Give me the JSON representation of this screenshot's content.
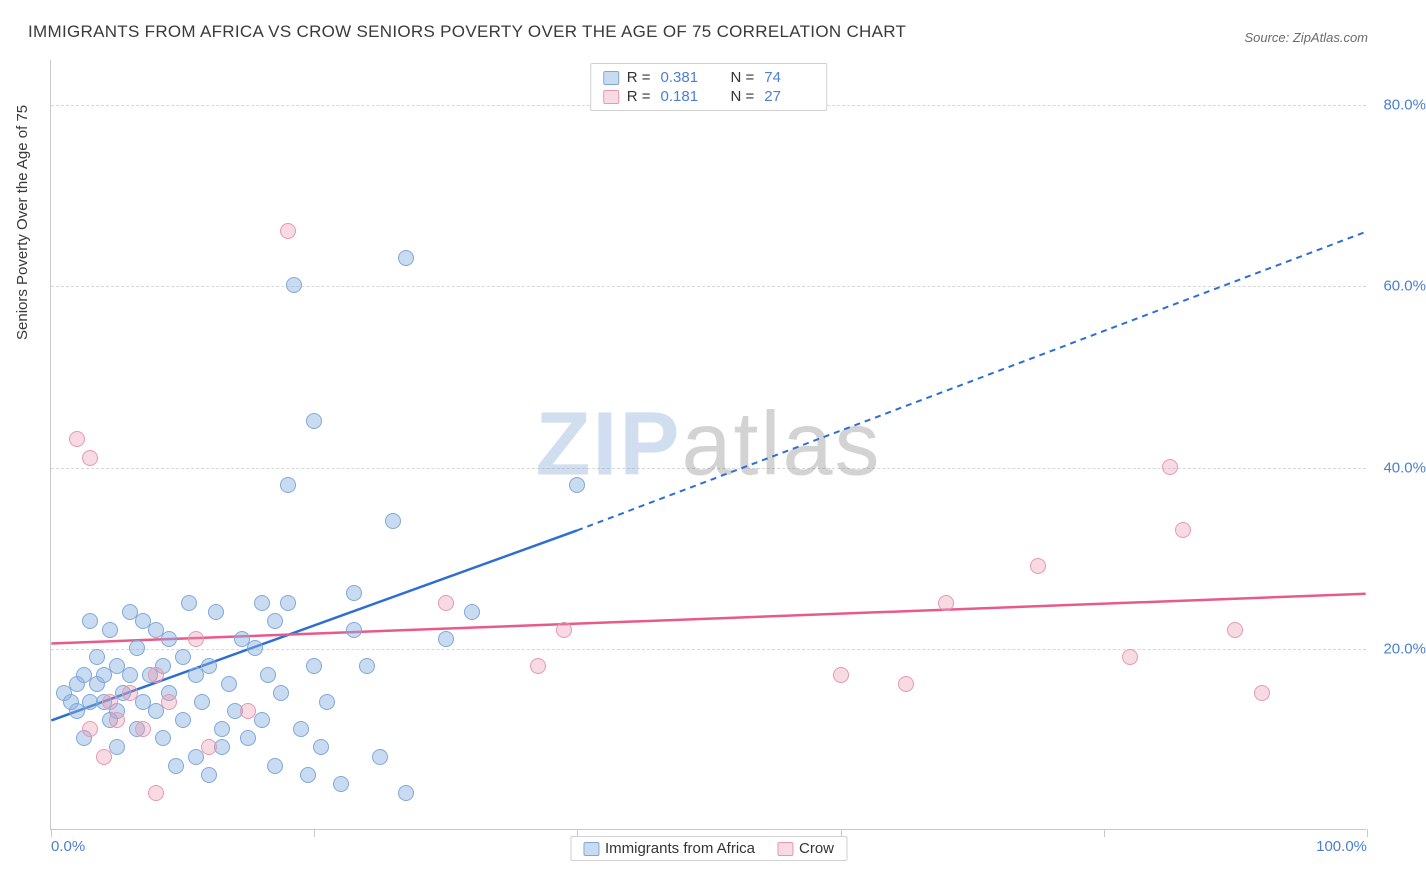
{
  "title": "IMMIGRANTS FROM AFRICA VS CROW SENIORS POVERTY OVER THE AGE OF 75 CORRELATION CHART",
  "source": "Source: ZipAtlas.com",
  "y_axis_label": "Seniors Poverty Over the Age of 75",
  "watermark": {
    "part1": "ZIP",
    "part2": "atlas"
  },
  "chart": {
    "type": "scatter-with-regression",
    "xlim": [
      0,
      100
    ],
    "ylim": [
      0,
      85
    ],
    "x_ticks": [
      0,
      20,
      40,
      60,
      80,
      100
    ],
    "x_tick_labels": {
      "0": "0.0%",
      "100": "100.0%"
    },
    "y_ticks": [
      20,
      40,
      60,
      80
    ],
    "y_tick_labels": {
      "20": "20.0%",
      "40": "40.0%",
      "60": "60.0%",
      "80": "80.0%"
    },
    "background_color": "#ffffff",
    "grid_color": "#d8d8d8",
    "axis_color": "#c9c9c9",
    "tick_label_color": "#4b7fd1",
    "label_color": "#3a3a3a",
    "marker_radius": 8,
    "series": [
      {
        "name": "Immigrants from Africa",
        "fill": "rgba(135,175,225,0.45)",
        "stroke": "#7fa8d9",
        "line_color": "#2d6fd1",
        "r_value": "0.381",
        "n_value": "74",
        "regression": {
          "x1": 0,
          "y1": 12,
          "x2_solid": 40,
          "y2_solid": 33,
          "x2_dash": 100,
          "y2_dash": 66
        },
        "points": [
          [
            1,
            15
          ],
          [
            1.5,
            14
          ],
          [
            2,
            16
          ],
          [
            2,
            13
          ],
          [
            2.5,
            17
          ],
          [
            2.5,
            10
          ],
          [
            3,
            14
          ],
          [
            3,
            23
          ],
          [
            3.5,
            16
          ],
          [
            3.5,
            19
          ],
          [
            4,
            14
          ],
          [
            4,
            17
          ],
          [
            4.5,
            12
          ],
          [
            4.5,
            22
          ],
          [
            5,
            13
          ],
          [
            5,
            18
          ],
          [
            5,
            9
          ],
          [
            5.5,
            15
          ],
          [
            6,
            17
          ],
          [
            6,
            24
          ],
          [
            6.5,
            11
          ],
          [
            6.5,
            20
          ],
          [
            7,
            14
          ],
          [
            7,
            23
          ],
          [
            7.5,
            17
          ],
          [
            8,
            22
          ],
          [
            8,
            13
          ],
          [
            8.5,
            10
          ],
          [
            8.5,
            18
          ],
          [
            9,
            21
          ],
          [
            9,
            15
          ],
          [
            9.5,
            7
          ],
          [
            10,
            19
          ],
          [
            10,
            12
          ],
          [
            10.5,
            25
          ],
          [
            11,
            17
          ],
          [
            11,
            8
          ],
          [
            11.5,
            14
          ],
          [
            12,
            18
          ],
          [
            12,
            6
          ],
          [
            12.5,
            24
          ],
          [
            13,
            11
          ],
          [
            13,
            9
          ],
          [
            13.5,
            16
          ],
          [
            14,
            13
          ],
          [
            14.5,
            21
          ],
          [
            15,
            10
          ],
          [
            15.5,
            20
          ],
          [
            16,
            25
          ],
          [
            16,
            12
          ],
          [
            16.5,
            17
          ],
          [
            17,
            23
          ],
          [
            17,
            7
          ],
          [
            17.5,
            15
          ],
          [
            18,
            25
          ],
          [
            18,
            38
          ],
          [
            18.5,
            60
          ],
          [
            19,
            11
          ],
          [
            19.5,
            6
          ],
          [
            20,
            45
          ],
          [
            20,
            18
          ],
          [
            20.5,
            9
          ],
          [
            21,
            14
          ],
          [
            22,
            5
          ],
          [
            23,
            22
          ],
          [
            23,
            26
          ],
          [
            24,
            18
          ],
          [
            25,
            8
          ],
          [
            26,
            34
          ],
          [
            27,
            4
          ],
          [
            27,
            63
          ],
          [
            30,
            21
          ],
          [
            32,
            24
          ],
          [
            40,
            38
          ]
        ]
      },
      {
        "name": "Crow",
        "fill": "rgba(235,150,175,0.35)",
        "stroke": "#e698b0",
        "line_color": "#e85a8c",
        "r_value": "0.181",
        "n_value": "27",
        "regression": {
          "x1": 0,
          "y1": 20.5,
          "x2_solid": 100,
          "y2_solid": 26,
          "x2_dash": 100,
          "y2_dash": 26
        },
        "points": [
          [
            2,
            43
          ],
          [
            3,
            41
          ],
          [
            3,
            11
          ],
          [
            4,
            8
          ],
          [
            4.5,
            14
          ],
          [
            5,
            12
          ],
          [
            6,
            15
          ],
          [
            7,
            11
          ],
          [
            8,
            4
          ],
          [
            9,
            14
          ],
          [
            11,
            21
          ],
          [
            15,
            13
          ],
          [
            18,
            66
          ],
          [
            30,
            25
          ],
          [
            37,
            18
          ],
          [
            39,
            22
          ],
          [
            65,
            16
          ],
          [
            75,
            29
          ],
          [
            82,
            19
          ],
          [
            85,
            40
          ],
          [
            86,
            33
          ],
          [
            90,
            22
          ],
          [
            92,
            15
          ],
          [
            60,
            17
          ],
          [
            68,
            25
          ],
          [
            8,
            17
          ],
          [
            12,
            9
          ]
        ]
      }
    ]
  },
  "legend_bottom": {
    "items": [
      "Immigrants from Africa",
      "Crow"
    ]
  }
}
